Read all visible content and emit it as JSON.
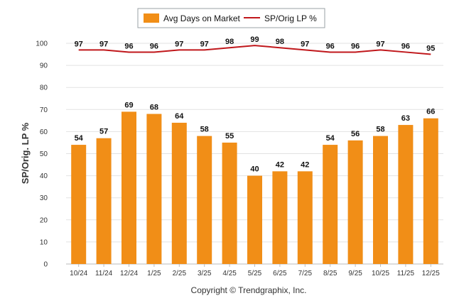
{
  "chart_data": {
    "type": "bar",
    "categories": [
      "10/24",
      "11/24",
      "12/24",
      "1/25",
      "2/25",
      "3/25",
      "4/25",
      "5/25",
      "6/25",
      "7/25",
      "8/25",
      "9/25",
      "10/25",
      "11/25",
      "12/25"
    ],
    "series": [
      {
        "name": "Avg Days on Market",
        "type": "bar",
        "color": "#f18e17",
        "values": [
          54,
          57,
          69,
          68,
          64,
          58,
          55,
          40,
          42,
          42,
          54,
          56,
          58,
          63,
          66
        ]
      },
      {
        "name": "SP/Orig LP %",
        "type": "line",
        "color": "#c0171b",
        "values": [
          97,
          97,
          96,
          96,
          97,
          97,
          98,
          99,
          98,
          97,
          96,
          96,
          97,
          96,
          95
        ]
      }
    ],
    "ylabel": "SP/Orig. LP %",
    "ylim": [
      0,
      100
    ],
    "yticks": [
      0,
      10,
      20,
      30,
      40,
      50,
      60,
      70,
      80,
      90,
      100
    ],
    "grid": true,
    "legend": "top-center"
  },
  "footer": "Copyright © Trendgraphix, Inc."
}
